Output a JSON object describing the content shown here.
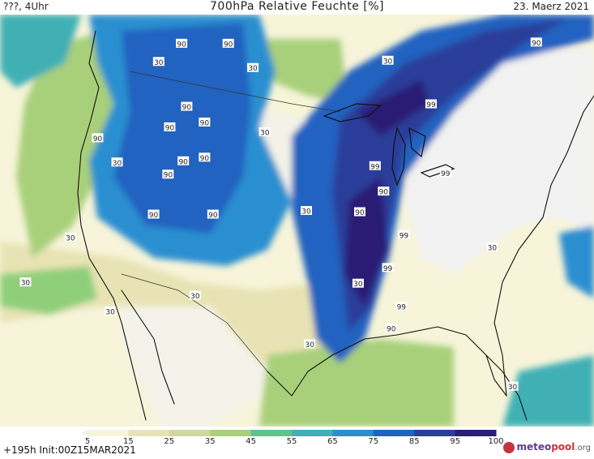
{
  "header": {
    "left_text": "???, 4Uhr",
    "title": "700hPa Relative Feuchte [%]",
    "date": "23. Maerz 2021"
  },
  "footer": {
    "init_text": "+195h  Init:00Z15MAR2021",
    "logo_pre": "meteo",
    "logo_mid": "pool",
    "logo_post": ".org"
  },
  "colorbar": {
    "ticks": [
      "5",
      "15",
      "25",
      "35",
      "45",
      "55",
      "65",
      "75",
      "85",
      "95",
      "100"
    ],
    "colors": [
      "#f2f2f2",
      "#f7f4d9",
      "#e8e3b4",
      "#cfd79a",
      "#a8d07a",
      "#5ec489",
      "#3fb0b5",
      "#2a8fd0",
      "#2262c0",
      "#2b3e9a",
      "#2a1f74"
    ]
  },
  "map": {
    "contour_labels": [
      {
        "text": "90",
        "lon": -118.6,
        "lat": 51.6
      },
      {
        "text": "90",
        "lon": -113.1,
        "lat": 51.6
      },
      {
        "text": "30",
        "lon": -121.3,
        "lat": 50.1
      },
      {
        "text": "30",
        "lon": -110.2,
        "lat": 49.6
      },
      {
        "text": "30",
        "lon": -94.3,
        "lat": 50.2
      },
      {
        "text": "90",
        "lon": -76.8,
        "lat": 51.7
      },
      {
        "text": "90",
        "lon": -118.0,
        "lat": 46.4
      },
      {
        "text": "90",
        "lon": -120.0,
        "lat": 44.7
      },
      {
        "text": "90",
        "lon": -115.9,
        "lat": 45.1
      },
      {
        "text": "30",
        "lon": -108.8,
        "lat": 44.3
      },
      {
        "text": "99",
        "lon": -89.2,
        "lat": 46.6
      },
      {
        "text": "90",
        "lon": -128.5,
        "lat": 43.8
      },
      {
        "text": "30",
        "lon": -126.2,
        "lat": 41.8
      },
      {
        "text": "90",
        "lon": -118.4,
        "lat": 41.9
      },
      {
        "text": "90",
        "lon": -120.2,
        "lat": 40.8
      },
      {
        "text": "90",
        "lon": -115.9,
        "lat": 42.2
      },
      {
        "text": "99",
        "lon": -95.8,
        "lat": 41.5
      },
      {
        "text": "99",
        "lon": -87.5,
        "lat": 40.9
      },
      {
        "text": "90",
        "lon": -94.8,
        "lat": 39.4
      },
      {
        "text": "30",
        "lon": -103.9,
        "lat": 37.8
      },
      {
        "text": "90",
        "lon": -97.6,
        "lat": 37.7
      },
      {
        "text": "90",
        "lon": -121.9,
        "lat": 37.5
      },
      {
        "text": "90",
        "lon": -114.9,
        "lat": 37.5
      },
      {
        "text": "30",
        "lon": -131.7,
        "lat": 35.6
      },
      {
        "text": "99",
        "lon": -92.4,
        "lat": 35.8
      },
      {
        "text": "30",
        "lon": -82.0,
        "lat": 34.8
      },
      {
        "text": "99",
        "lon": -94.3,
        "lat": 33.1
      },
      {
        "text": "30",
        "lon": -137.0,
        "lat": 31.9
      },
      {
        "text": "30",
        "lon": -97.8,
        "lat": 31.8
      },
      {
        "text": "30",
        "lon": -117.0,
        "lat": 30.8
      },
      {
        "text": "99",
        "lon": -92.7,
        "lat": 29.9
      },
      {
        "text": "30",
        "lon": -127.0,
        "lat": 29.5
      },
      {
        "text": "90",
        "lon": -93.9,
        "lat": 28.1
      },
      {
        "text": "30",
        "lon": -103.5,
        "lat": 26.8
      },
      {
        "text": "30",
        "lon": -79.6,
        "lat": 23.3
      }
    ]
  }
}
